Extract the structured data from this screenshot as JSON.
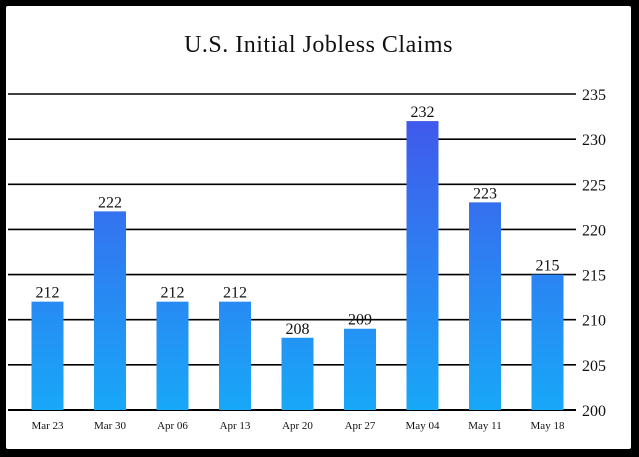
{
  "chart_data": {
    "type": "bar",
    "title": "U.S. Initial Jobless Claims",
    "xlabel": "",
    "ylabel": "",
    "categories": [
      "Mar 23",
      "Mar 30",
      "Apr 06",
      "Apr 13",
      "Apr 20",
      "Apr 27",
      "May 04",
      "May 11",
      "May 18"
    ],
    "values": [
      212,
      222,
      212,
      212,
      208,
      209,
      232,
      223,
      215
    ],
    "ylim": [
      200,
      235
    ],
    "yticks": [
      200,
      205,
      210,
      215,
      220,
      225,
      230,
      235
    ],
    "y_axis_side": "right",
    "grid": true,
    "legend": "none",
    "colors": {
      "bar_top": "#4452ea",
      "bar_bottom": "#18a8f8",
      "grid": "#000000",
      "background": "#ffffff"
    }
  }
}
